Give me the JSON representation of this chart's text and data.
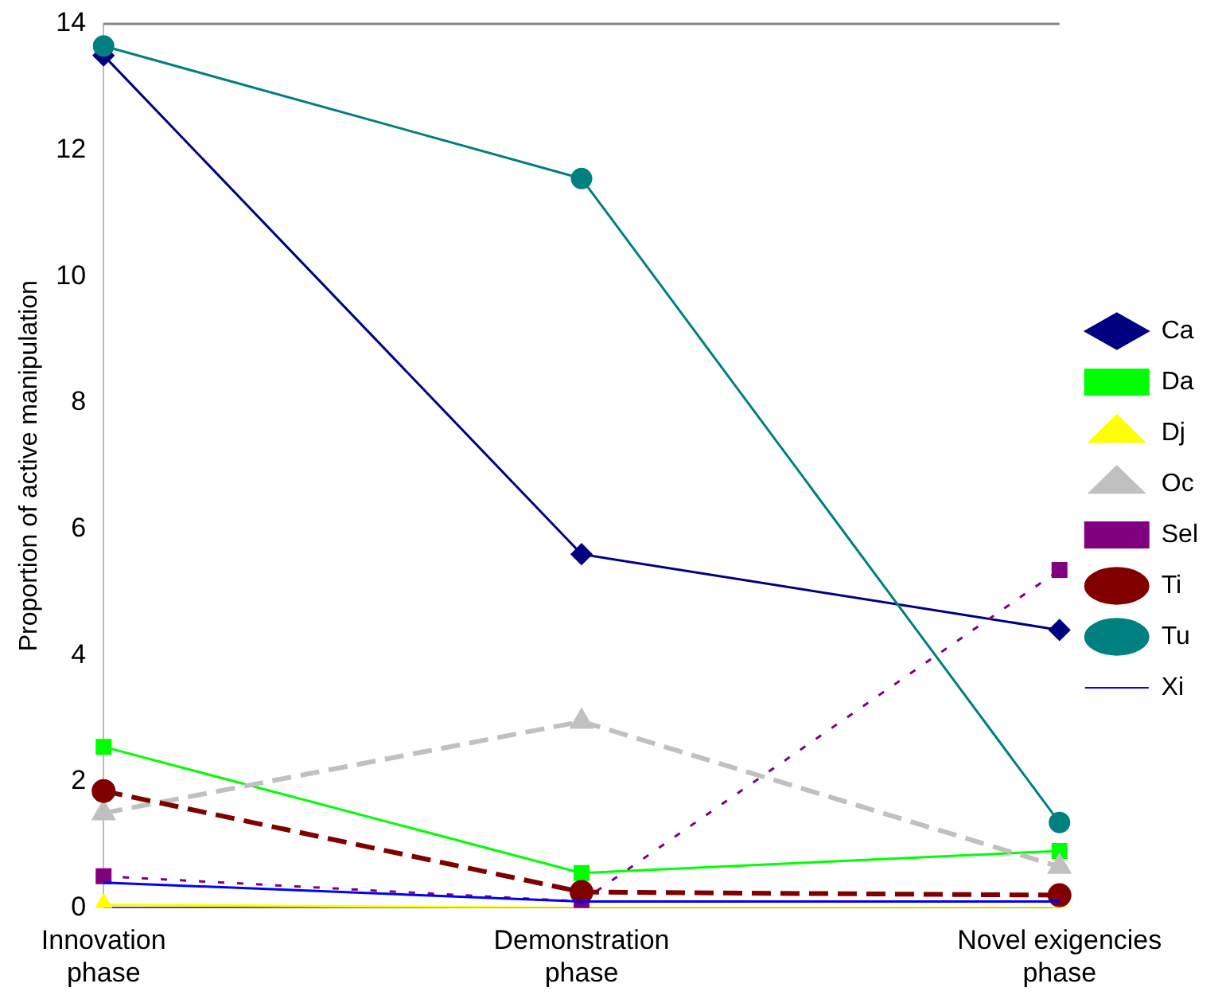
{
  "chart_data": {
    "type": "line",
    "ylabel": "Proportion of active manipulation",
    "categories": [
      "Innovation phase",
      "Demonstration phase",
      "Novel exigencies phase"
    ],
    "ylim": [
      0,
      14
    ],
    "yticks": [
      0,
      2,
      4,
      6,
      8,
      10,
      12,
      14
    ],
    "grid": false,
    "legend": "right",
    "series": [
      {
        "name": "Ca",
        "color": "#000080",
        "marker": "diamond",
        "line_style": "solid",
        "values": [
          13.5,
          5.6,
          4.4
        ]
      },
      {
        "name": "Da",
        "color": "#00ff00",
        "marker": "square",
        "line_style": "solid",
        "values": [
          2.55,
          0.55,
          0.9
        ]
      },
      {
        "name": "Dj",
        "color": "#ffff00",
        "marker": "triangle",
        "line_style": "solid",
        "values": [
          0.05,
          0,
          0
        ]
      },
      {
        "name": "Oc",
        "color": "#c0c0c0",
        "marker": "triangle",
        "line_style": "dashed",
        "values": [
          1.5,
          2.95,
          0.65
        ]
      },
      {
        "name": "Sel",
        "color": "#800080",
        "marker": "square",
        "line_style": "dotted",
        "values": [
          0.5,
          0.1,
          5.35
        ]
      },
      {
        "name": "Ti",
        "color": "#800000",
        "marker": "circle",
        "line_style": "dashed",
        "values": [
          1.85,
          0.25,
          0.2
        ]
      },
      {
        "name": "Tu",
        "color": "#008080",
        "marker": "circle",
        "line_style": "solid",
        "values": [
          13.65,
          11.55,
          1.35
        ]
      },
      {
        "name": "Xi",
        "color": "#0000ff",
        "marker": "none",
        "line_style": "solid",
        "values": [
          0.4,
          0.1,
          0.1
        ]
      }
    ]
  }
}
